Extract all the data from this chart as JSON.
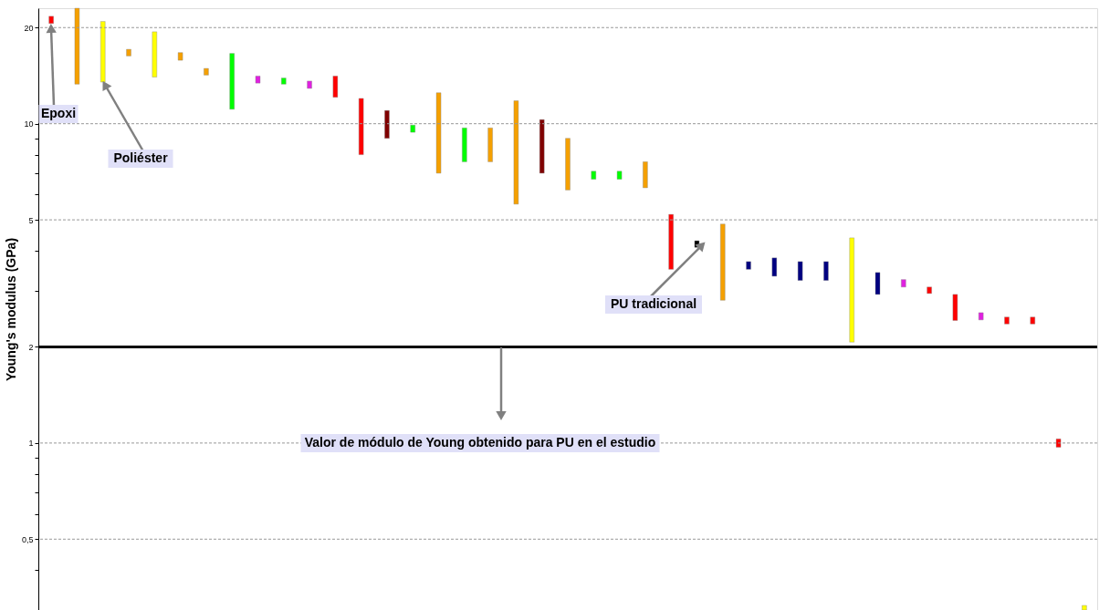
{
  "chart_data": {
    "type": "bar",
    "ylabel": "Young's modulus (GPa)",
    "categories": [
      null,
      null,
      null,
      null,
      null,
      null,
      null,
      null,
      null,
      null,
      null,
      null,
      null,
      null,
      null,
      null,
      null,
      null,
      null,
      null,
      null,
      null,
      null,
      null,
      null,
      null,
      null,
      null,
      null,
      null,
      null,
      null,
      null,
      null,
      null,
      null,
      null,
      null,
      null,
      null,
      null
    ],
    "base": [
      20.6,
      13.3,
      13.5,
      16.3,
      14.0,
      15.8,
      14.2,
      11.1,
      13.4,
      13.3,
      12.9,
      12.1,
      8.0,
      9.0,
      9.4,
      7.0,
      7.6,
      7.6,
      5.6,
      7.0,
      6.2,
      6.7,
      6.7,
      6.3,
      3.5,
      4.1,
      2.8,
      3.5,
      3.33,
      3.23,
      3.23,
      2.07,
      2.92,
      3.08,
      2.94,
      2.42,
      2.43,
      2.36,
      2.36,
      0.97,
      0.3
    ],
    "values": [
      1.1,
      9.7,
      7.4,
      0.8,
      5.4,
      0.9,
      0.7,
      5.5,
      0.7,
      0.6,
      0.7,
      2.0,
      4.0,
      2.0,
      0.5,
      5.5,
      2.1,
      2.1,
      6.2,
      3.3,
      2.8,
      0.4,
      0.4,
      1.3,
      1.7,
      0.2,
      2.05,
      0.2,
      0.47,
      0.47,
      0.47,
      2.32,
      0.5,
      0.17,
      0.14,
      0.5,
      0.13,
      0.12,
      0.12,
      0.06,
      0.01
    ],
    "colors": [
      "#ff0000",
      "#f5a000",
      "#ffff00",
      "#f5a000",
      "#ffff00",
      "#f5a000",
      "#f5a000",
      "#00ff00",
      "#e020e0",
      "#00ff00",
      "#e020e0",
      "#ff0000",
      "#ff0000",
      "#800000",
      "#00ff00",
      "#f5a000",
      "#00ff00",
      "#f5a000",
      "#f5a000",
      "#800000",
      "#f5a000",
      "#00ff00",
      "#00ff00",
      "#f5a000",
      "#ff0000",
      "#000000",
      "#f5a000",
      "#000080",
      "#000080",
      "#000080",
      "#000080",
      "#ffff00",
      "#000080",
      "#e020e0",
      "#ff0000",
      "#ff0000",
      "#e020e0",
      "#ff0000",
      "#ff0000",
      "#ff0000",
      "#ffff00"
    ],
    "log": "y",
    "ylim": [
      0.3,
      23
    ],
    "yticks": [
      {
        "value": 0.4,
        "label": null
      },
      {
        "value": 0.5,
        "label": "0,5"
      },
      {
        "value": 0.6,
        "label": null
      },
      {
        "value": 0.7,
        "label": null
      },
      {
        "value": 0.8,
        "label": null
      },
      {
        "value": 0.9,
        "label": null
      },
      1,
      2,
      {
        "value": 3,
        "label": null
      },
      {
        "value": 4,
        "label": null
      },
      5,
      {
        "value": 6,
        "label": null
      },
      {
        "value": 7,
        "label": null
      },
      {
        "value": 8,
        "label": null
      },
      {
        "value": 9,
        "label": null
      },
      10,
      20
    ],
    "grid": "y",
    "tick_labels": "y",
    "ref_lines": [
      {
        "axis": "y",
        "value": 2,
        "color": "#000000"
      }
    ],
    "annotations": [
      "Epoxi",
      "Poliéster",
      "PU tradicional",
      "Valor de módulo de Young obtenido para PU en el estudio"
    ]
  }
}
